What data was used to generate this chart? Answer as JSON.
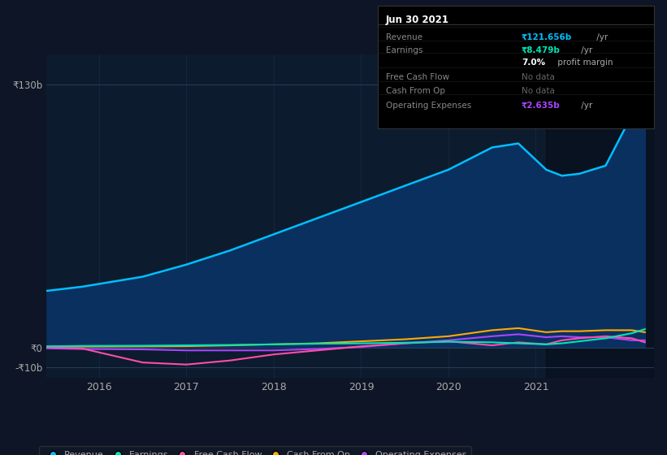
{
  "bg_color": "#0d1526",
  "plot_bg_color": "#0d1b2e",
  "grid_color": "#1e3050",
  "text_color": "#aaaaaa",
  "ylim": [
    -15,
    145
  ],
  "yticks_values": [
    -10,
    0,
    130
  ],
  "ytick_labels": [
    "-₹10b",
    "₹0",
    "₹130b"
  ],
  "xlim": [
    2014.9,
    2021.85
  ],
  "xtick_positions": [
    2015.5,
    2016.5,
    2017.5,
    2018.5,
    2019.5,
    2020.5,
    2021.5
  ],
  "xtick_labels": [
    "2016",
    "2017",
    "2018",
    "2019",
    "2020",
    "2021",
    ""
  ],
  "highlight_x_start": 2020.62,
  "highlight_x_end": 2021.85,
  "series": {
    "Revenue": {
      "color": "#00bfff",
      "fill_color": "#0a3060",
      "x": [
        2014.9,
        2015.3,
        2016.0,
        2016.5,
        2017.0,
        2017.5,
        2018.0,
        2018.5,
        2019.0,
        2019.5,
        2020.0,
        2020.3,
        2020.62,
        2020.8,
        2021.0,
        2021.3,
        2021.6,
        2021.75
      ],
      "y": [
        28,
        30,
        35,
        41,
        48,
        56,
        64,
        72,
        80,
        88,
        99,
        101,
        88,
        85,
        86,
        90,
        115,
        132
      ]
    },
    "Earnings": {
      "color": "#00e5b4",
      "x": [
        2014.9,
        2015.3,
        2016.0,
        2016.5,
        2017.0,
        2017.5,
        2018.0,
        2018.5,
        2019.0,
        2019.5,
        2020.0,
        2020.3,
        2020.62,
        2020.8,
        2021.0,
        2021.3,
        2021.6,
        2021.75
      ],
      "y": [
        0.5,
        0.7,
        0.8,
        1.0,
        1.2,
        1.5,
        1.8,
        2.0,
        2.3,
        2.8,
        2.5,
        2.0,
        1.5,
        2.0,
        3.0,
        4.5,
        7.0,
        9.0
      ]
    },
    "Free Cash Flow": {
      "color": "#ff4da6",
      "x": [
        2014.9,
        2015.3,
        2016.0,
        2016.5,
        2017.0,
        2017.5,
        2018.0,
        2018.5,
        2019.0,
        2019.5,
        2020.0,
        2020.3,
        2020.62,
        2020.8,
        2021.0,
        2021.3,
        2021.6,
        2021.75
      ],
      "y": [
        0.0,
        -0.5,
        -7.5,
        -8.5,
        -6.5,
        -3.5,
        -1.5,
        0.5,
        2.0,
        3.0,
        1.0,
        2.5,
        1.5,
        3.5,
        4.5,
        5.5,
        4.5,
        2.5
      ]
    },
    "Cash From Op": {
      "color": "#ffaa00",
      "x": [
        2014.9,
        2015.3,
        2016.0,
        2016.5,
        2017.0,
        2017.5,
        2018.0,
        2018.5,
        2019.0,
        2019.5,
        2020.0,
        2020.3,
        2020.62,
        2020.8,
        2021.0,
        2021.3,
        2021.6,
        2021.75
      ],
      "y": [
        0.3,
        0.4,
        0.5,
        0.6,
        1.0,
        1.5,
        2.0,
        3.0,
        4.0,
        5.5,
        8.5,
        9.5,
        7.5,
        8.0,
        8.0,
        8.5,
        8.5,
        7.5
      ]
    },
    "Operating Expenses": {
      "color": "#aa44ff",
      "x": [
        2014.9,
        2015.3,
        2016.0,
        2016.5,
        2017.0,
        2017.5,
        2018.0,
        2018.5,
        2019.0,
        2019.5,
        2020.0,
        2020.3,
        2020.62,
        2020.8,
        2021.0,
        2021.3,
        2021.6,
        2021.75
      ],
      "y": [
        -0.5,
        -0.8,
        -1.0,
        -1.5,
        -1.5,
        -1.5,
        -0.8,
        0.2,
        2.0,
        3.5,
        5.5,
        6.5,
        5.0,
        5.5,
        5.0,
        5.0,
        3.5,
        3.5
      ]
    }
  },
  "legend": [
    {
      "label": "Revenue",
      "color": "#00bfff"
    },
    {
      "label": "Earnings",
      "color": "#00e5b4"
    },
    {
      "label": "Free Cash Flow",
      "color": "#ff4da6"
    },
    {
      "label": "Cash From Op",
      "color": "#ffaa00"
    },
    {
      "label": "Operating Expenses",
      "color": "#aa44ff"
    }
  ],
  "tooltip": {
    "title": "Jun 30 2021",
    "rows": [
      {
        "label": "Revenue",
        "value": "₹121.656b",
        "suffix": " /yr",
        "value_color": "#00bfff"
      },
      {
        "label": "Earnings",
        "value": "₹8.479b",
        "suffix": " /yr",
        "value_color": "#00e5b4"
      },
      {
        "label": "",
        "value": "7.0%",
        "suffix": " profit margin",
        "value_color": "#ffffff"
      },
      {
        "label": "Free Cash Flow",
        "value": "No data",
        "suffix": "",
        "value_color": "#666666"
      },
      {
        "label": "Cash From Op",
        "value": "No data",
        "suffix": "",
        "value_color": "#666666"
      },
      {
        "label": "Operating Expenses",
        "value": "₹2.635b",
        "suffix": " /yr",
        "value_color": "#aa44ff"
      }
    ]
  }
}
